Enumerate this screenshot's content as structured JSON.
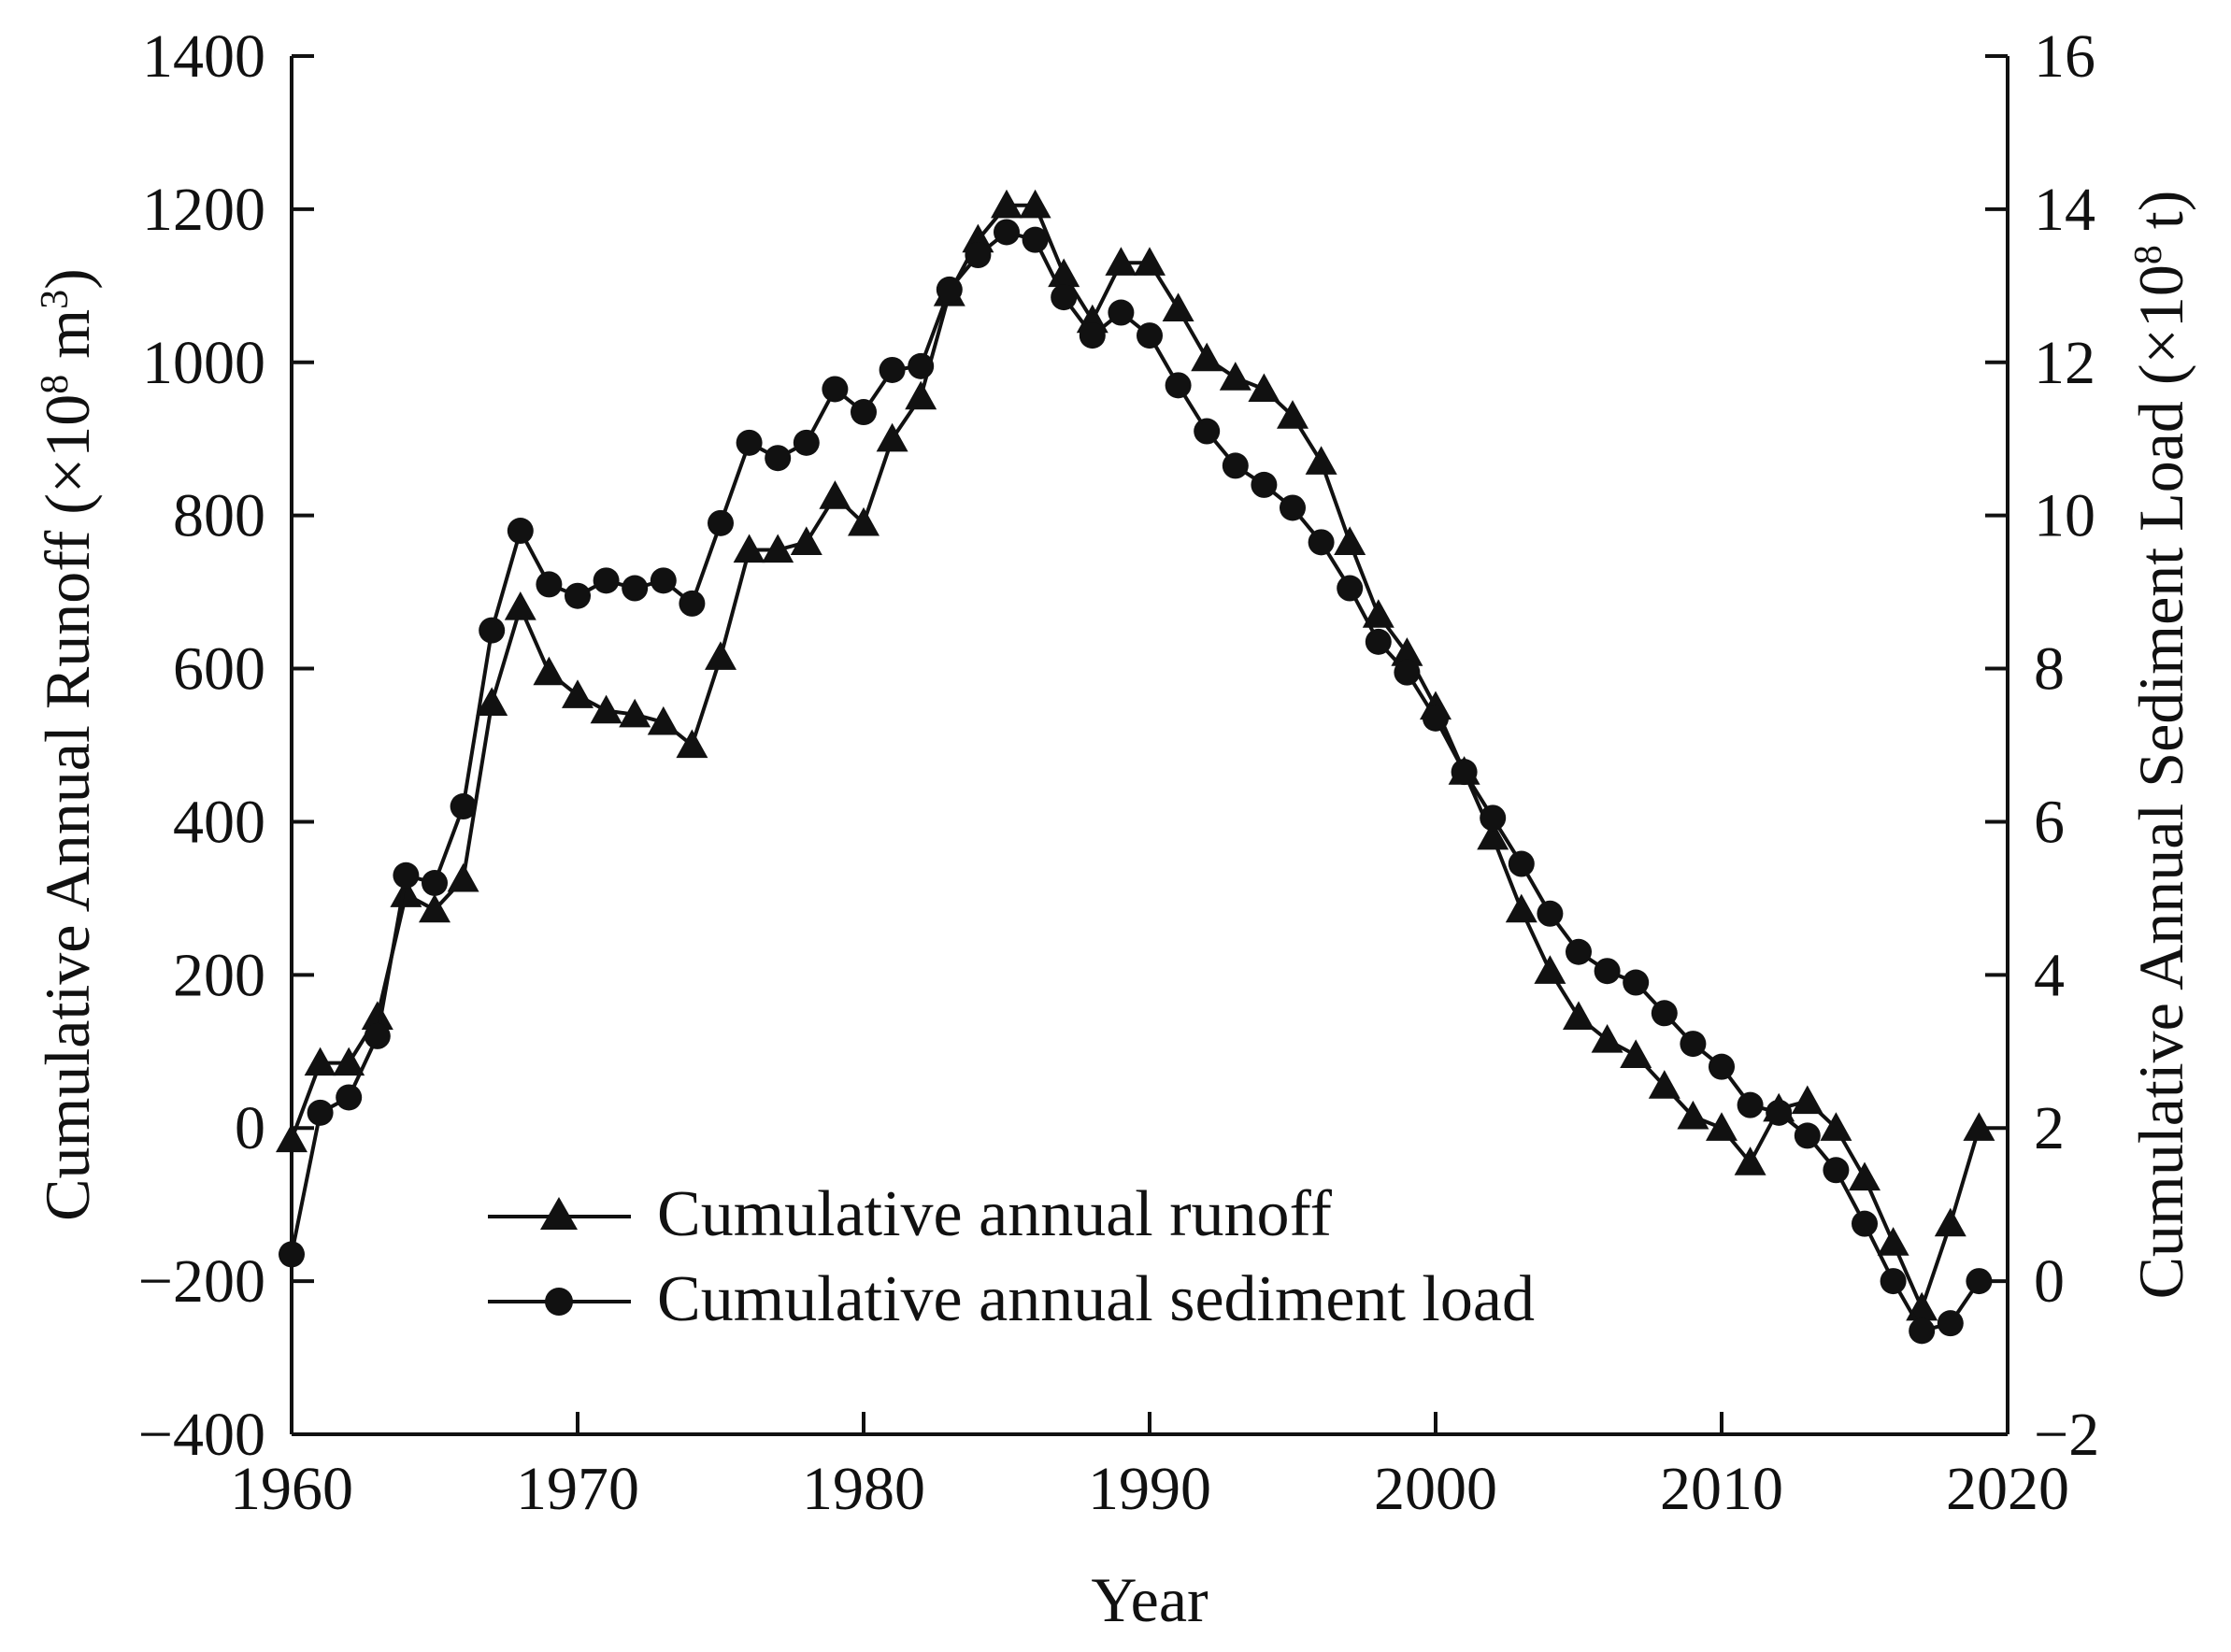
{
  "colors": {
    "ink": "#111111",
    "background": "#ffffff"
  },
  "chart_data": {
    "type": "line",
    "title": "",
    "xlabel": "Year",
    "ylabel_left_main": "Cumulative Annual Runoff (×10",
    "ylabel_left_sup": "8",
    "ylabel_left_unit": " m",
    "ylabel_left_sup2": "3",
    "ylabel_left_close": ")",
    "ylabel_right_main": "Cumulative Annual Sediment Load (×10",
    "ylabel_right_sup": "8",
    "ylabel_right_close": " t)",
    "xlim": [
      1960,
      2020
    ],
    "ylim_left": [
      -400,
      1400
    ],
    "ylim_right": [
      -2,
      16
    ],
    "x_ticks": [
      1960,
      1970,
      1980,
      1990,
      2000,
      2010,
      2020
    ],
    "y_ticks_left": [
      -400,
      -200,
      0,
      200,
      400,
      600,
      800,
      1000,
      1200,
      1400
    ],
    "y_ticks_right": [
      -2,
      0,
      2,
      4,
      6,
      8,
      10,
      12,
      14,
      16
    ],
    "x_tick_labels": [
      "1960",
      "1970",
      "1980",
      "1990",
      "2000",
      "2010",
      "2020"
    ],
    "y_tick_labels_left": [
      "−400",
      "−200",
      "0",
      "200",
      "400",
      "600",
      "800",
      "1000",
      "1200",
      "1400"
    ],
    "y_tick_labels_right": [
      "−2",
      "0",
      "2",
      "4",
      "6",
      "8",
      "10",
      "12",
      "14",
      "16"
    ],
    "legend_position": "bottom-left",
    "x": [
      1960,
      1961,
      1962,
      1963,
      1964,
      1965,
      1966,
      1967,
      1968,
      1969,
      1970,
      1971,
      1972,
      1973,
      1974,
      1975,
      1976,
      1977,
      1978,
      1979,
      1980,
      1981,
      1982,
      1983,
      1984,
      1985,
      1986,
      1987,
      1988,
      1989,
      1990,
      1991,
      1992,
      1993,
      1994,
      1995,
      1996,
      1997,
      1998,
      1999,
      2000,
      2001,
      2002,
      2003,
      2004,
      2005,
      2006,
      2007,
      2008,
      2009,
      2010,
      2011,
      2012,
      2013,
      2014,
      2015,
      2016,
      2017,
      2018,
      2019
    ],
    "series": [
      {
        "name": "Cumulative annual runoff",
        "axis": "left",
        "marker": "triangle",
        "values": [
          -15,
          85,
          85,
          145,
          305,
          285,
          325,
          555,
          680,
          595,
          565,
          545,
          540,
          530,
          500,
          615,
          755,
          755,
          765,
          825,
          790,
          900,
          955,
          1090,
          1160,
          1205,
          1205,
          1115,
          1055,
          1130,
          1130,
          1070,
          1005,
          980,
          965,
          930,
          870,
          765,
          670,
          620,
          550,
          465,
          380,
          285,
          205,
          145,
          115,
          95,
          55,
          15,
          0,
          -45,
          25,
          35,
          0,
          -65,
          -150,
          -235,
          -125,
          0
        ]
      },
      {
        "name": "Cumulative annual sediment load",
        "axis": "right",
        "marker": "circle",
        "values": [
          0.35,
          2.2,
          2.4,
          3.2,
          5.3,
          5.2,
          6.2,
          8.5,
          9.8,
          9.1,
          8.95,
          9.15,
          9.05,
          9.15,
          8.85,
          9.9,
          10.95,
          10.75,
          10.95,
          11.65,
          11.35,
          11.9,
          11.95,
          12.95,
          13.4,
          13.7,
          13.6,
          12.85,
          12.35,
          12.65,
          12.35,
          11.7,
          11.1,
          10.65,
          10.4,
          10.1,
          9.65,
          9.05,
          8.35,
          7.95,
          7.35,
          6.65,
          6.05,
          5.45,
          4.8,
          4.3,
          4.05,
          3.9,
          3.5,
          3.1,
          2.8,
          2.3,
          2.2,
          1.9,
          1.45,
          0.75,
          0.0,
          -0.65,
          -0.55,
          0.0
        ]
      }
    ]
  }
}
